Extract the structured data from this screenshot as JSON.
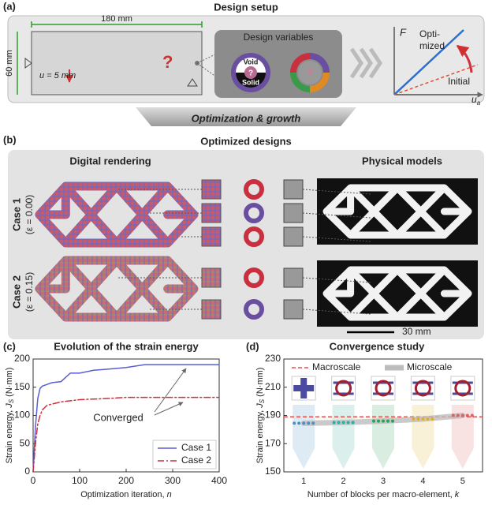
{
  "panel_a": {
    "label": "(a)",
    "title": "Design setup",
    "length": "180 mm",
    "height": "60 mm",
    "load": "u = 5 mm",
    "unknown": "?",
    "design_variables": {
      "title": "Design variables",
      "void": "Void",
      "solid": "Solid"
    },
    "plot": {
      "y_axis": "F",
      "optimized": [
        "Opti-",
        "mized"
      ],
      "initial": "Initial",
      "x_axis": "u",
      "x_axis_sub": "a"
    }
  },
  "banner": "Optimization & growth",
  "panel_b": {
    "label": "(b)",
    "title": "Optimized designs",
    "left_header": "Digital rendering",
    "right_header": "Physical models",
    "cases": [
      {
        "name": "Case 1",
        "param": "(ε = 0.00)"
      },
      {
        "name": "Case 2",
        "param": "(ε = 0.15)"
      }
    ],
    "scale_bar": "30 mm"
  },
  "chart_data": [
    {
      "type": "line",
      "label": "(c)",
      "title": "Evolution of the strain energy",
      "xlabel": {
        "text": "Optimization iteration, ",
        "var": "n"
      },
      "ylabel": {
        "text": "Strain energy, ",
        "var": "J",
        "sub": "S",
        "unit": " (N·mm)"
      },
      "x": [
        0,
        5,
        10,
        15,
        20,
        30,
        40,
        60,
        80,
        100,
        130,
        160,
        200,
        240,
        300,
        350,
        400
      ],
      "series": [
        {
          "name": "Case 1",
          "color": "#5a5fcf",
          "dash": "solid",
          "values": [
            0,
            80,
            130,
            148,
            152,
            155,
            158,
            160,
            175,
            175,
            180,
            182,
            185,
            190,
            190,
            190,
            190
          ]
        },
        {
          "name": "Case 2",
          "color": "#c8323c",
          "dash": "dashdot",
          "values": [
            0,
            50,
            85,
            100,
            110,
            118,
            120,
            124,
            126,
            128,
            129,
            130,
            132,
            132,
            132,
            132,
            132
          ]
        }
      ],
      "xlim": [
        0,
        400
      ],
      "xticks": [
        0,
        100,
        200,
        300,
        400
      ],
      "ylim": [
        0,
        200
      ],
      "yticks": [
        0,
        50,
        100,
        150,
        200
      ],
      "annotation": "Converged",
      "legend": "lower right"
    },
    {
      "type": "line",
      "label": "(d)",
      "title": "Convergence study",
      "xlabel": {
        "text": "Number of blocks per macro-element, ",
        "var": "k"
      },
      "ylabel": {
        "text": "Strain energy, ",
        "var": "J",
        "sub": "S",
        "unit": " (N·mm)"
      },
      "categories": [
        "1",
        "2",
        "3",
        "4",
        "5"
      ],
      "series": [
        {
          "name": "Microscale",
          "color": "#bdbdbd",
          "dash": "solid",
          "width": 7,
          "values": [
            184.5,
            185,
            186,
            187.5,
            190
          ],
          "point_colors": [
            "#4a90c8",
            "#3aa89a",
            "#2e9e5a",
            "#e0b020",
            "#e06060"
          ]
        }
      ],
      "reference_line": {
        "name": "Macroscale",
        "value": 189,
        "color": "#e0504a",
        "dash": "dashed"
      },
      "ylim": [
        150,
        230
      ],
      "yticks": [
        150,
        170,
        190,
        210,
        230
      ],
      "legend": "upper"
    }
  ]
}
